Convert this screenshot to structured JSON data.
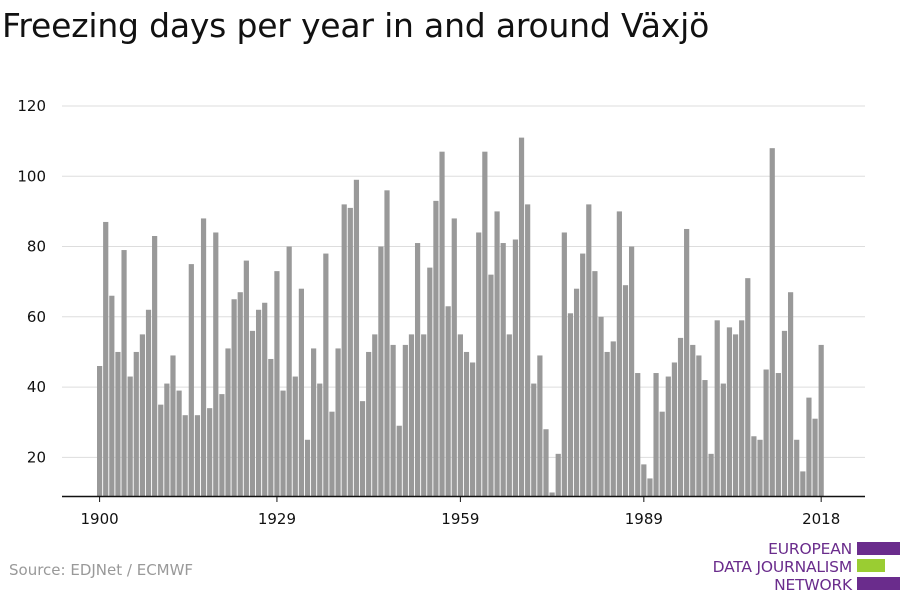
{
  "chart_data": {
    "type": "bar",
    "title": "Freezing days per year in and around Växjö",
    "xlabel": "",
    "ylabel": "",
    "ylim": [
      9,
      120
    ],
    "yticks": [
      20,
      40,
      60,
      80,
      100,
      120
    ],
    "xticks": [
      1900,
      1929,
      1959,
      1989,
      2018
    ],
    "grid": true,
    "bar_color": "#999999",
    "series": [
      {
        "name": "Freezing days",
        "start_year": 1900,
        "values": [
          46,
          87,
          66,
          50,
          79,
          43,
          50,
          55,
          62,
          83,
          35,
          41,
          49,
          39,
          32,
          75,
          32,
          88,
          34,
          84,
          38,
          51,
          65,
          67,
          76,
          56,
          62,
          64,
          48,
          73,
          39,
          80,
          43,
          68,
          25,
          51,
          41,
          78,
          33,
          51,
          92,
          91,
          99,
          36,
          50,
          55,
          80,
          96,
          52,
          29,
          52,
          55,
          81,
          55,
          74,
          93,
          107,
          63,
          88,
          55,
          50,
          47,
          84,
          107,
          72,
          90,
          81,
          55,
          82,
          111,
          92,
          41,
          49,
          28,
          10,
          21,
          84,
          61,
          68,
          78,
          92,
          73,
          60,
          50,
          53,
          90,
          69,
          80,
          44,
          18,
          14,
          44,
          33,
          43,
          47,
          54,
          85,
          52,
          49,
          42,
          21,
          59,
          41,
          57,
          55,
          59,
          71,
          26,
          25,
          45,
          108,
          44,
          56,
          67,
          25,
          16,
          37,
          31,
          52
        ]
      }
    ]
  },
  "source_text": "Source: EDJNet / ECMWF",
  "logo": {
    "lines": [
      "EUROPEAN",
      "DATA JOURNALISM",
      "NETWORK"
    ],
    "colors": {
      "purple": "#6a2c8c",
      "green": "#9acd32"
    }
  }
}
